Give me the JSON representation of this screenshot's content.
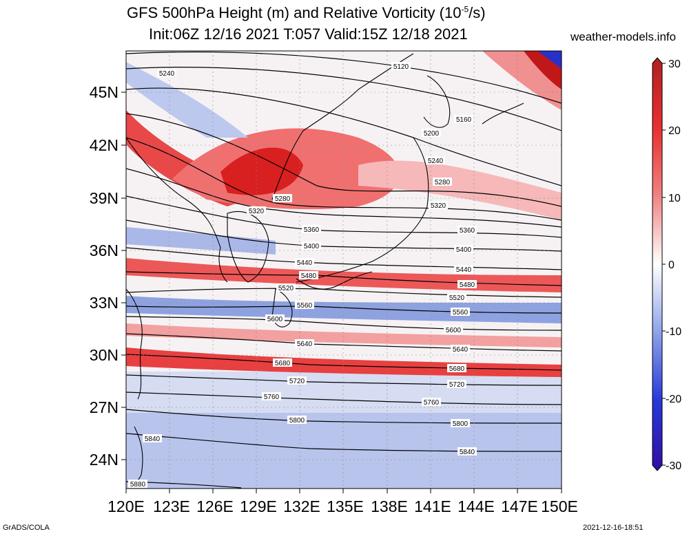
{
  "header": {
    "title_line1": "GFS 500hPa Height (m) and Relative Vorticity (10",
    "title_line1_sup": "-5",
    "title_line1_end": "/s)",
    "title_line2": "Init:06Z 12/16 2021 T:057 Valid:15Z 12/18 2021",
    "site": "weather-models.info"
  },
  "footer": {
    "left": "GrADS/COLA",
    "right": "2021-12-16-18:51"
  },
  "axes": {
    "lat_labels": [
      "45N",
      "42N",
      "39N",
      "36N",
      "33N",
      "30N",
      "27N",
      "24N"
    ],
    "lon_labels": [
      "120E",
      "123E",
      "126E",
      "129E",
      "132E",
      "135E",
      "138E",
      "141E",
      "144E",
      "147E",
      "150E"
    ]
  },
  "colorbar": {
    "labels": [
      "30",
      "20",
      "10",
      "0",
      "-10",
      "-20",
      "-30"
    ]
  },
  "contours": {
    "labels": [
      "5120",
      "5160",
      "5200",
      "5240",
      "5240",
      "5280",
      "5280",
      "5320",
      "5320",
      "5360",
      "5360",
      "5400",
      "5400",
      "5440",
      "5440",
      "5480",
      "5480",
      "5520",
      "5520",
      "5560",
      "5560",
      "5600",
      "5600",
      "5640",
      "5640",
      "5680",
      "5680",
      "5720",
      "5720",
      "5760",
      "5760",
      "5800",
      "5800",
      "5840",
      "5840",
      "5880"
    ]
  },
  "colors": {
    "positive_vorticity": "#e8282a",
    "negative_vorticity": "#4a6fd8",
    "neutral": "#ffffff"
  }
}
